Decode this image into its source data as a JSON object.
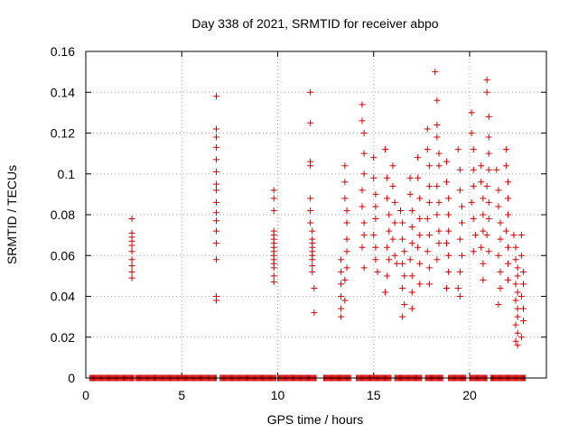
{
  "chart_data": {
    "type": "scatter",
    "title": "Day 338 of 2021, SRMTID for receiver abpo",
    "xlabel": "GPS time / hours",
    "ylabel": "SRMTID / TECUs",
    "xlim": [
      0,
      24
    ],
    "ylim": [
      0,
      0.16
    ],
    "xticks": [
      0,
      5,
      10,
      15,
      20
    ],
    "xtick_labels": [
      "0",
      "5",
      "10",
      "15",
      "20"
    ],
    "yticks": [
      0,
      0.02,
      0.04,
      0.06,
      0.08,
      0.1,
      0.12,
      0.14,
      0.16
    ],
    "ytick_labels": [
      "0",
      "0.02",
      "0.04",
      "0.06",
      "0.08",
      "0.1",
      "0.12",
      "0.14",
      "0.16"
    ],
    "grid": true,
    "marker": "+",
    "series": [
      {
        "name": "SRMTID",
        "color": "#d40000",
        "points": [
          [
            2.4,
            0.078
          ],
          [
            2.4,
            0.071
          ],
          [
            2.4,
            0.069
          ],
          [
            2.4,
            0.067
          ],
          [
            2.4,
            0.065
          ],
          [
            2.4,
            0.062
          ],
          [
            2.4,
            0.058
          ],
          [
            2.4,
            0.055
          ],
          [
            2.4,
            0.052
          ],
          [
            2.4,
            0.049
          ],
          [
            6.8,
            0.138
          ],
          [
            6.8,
            0.122
          ],
          [
            6.8,
            0.118
          ],
          [
            6.8,
            0.113
          ],
          [
            6.8,
            0.107
          ],
          [
            6.8,
            0.101
          ],
          [
            6.8,
            0.095
          ],
          [
            6.8,
            0.092
          ],
          [
            6.8,
            0.086
          ],
          [
            6.8,
            0.081
          ],
          [
            6.8,
            0.077
          ],
          [
            6.8,
            0.072
          ],
          [
            6.8,
            0.066
          ],
          [
            6.8,
            0.058
          ],
          [
            6.8,
            0.04
          ],
          [
            6.8,
            0.038
          ],
          [
            9.8,
            0.092
          ],
          [
            9.8,
            0.088
          ],
          [
            9.8,
            0.082
          ],
          [
            9.8,
            0.072
          ],
          [
            9.8,
            0.07
          ],
          [
            9.8,
            0.068
          ],
          [
            9.8,
            0.066
          ],
          [
            9.8,
            0.064
          ],
          [
            9.8,
            0.062
          ],
          [
            9.8,
            0.06
          ],
          [
            9.8,
            0.058
          ],
          [
            9.8,
            0.056
          ],
          [
            9.8,
            0.054
          ],
          [
            9.8,
            0.05
          ],
          [
            9.8,
            0.047
          ],
          [
            11.7,
            0.14
          ],
          [
            11.7,
            0.125
          ],
          [
            11.7,
            0.106
          ],
          [
            11.7,
            0.104
          ],
          [
            11.7,
            0.088
          ],
          [
            11.7,
            0.082
          ],
          [
            11.7,
            0.076
          ],
          [
            11.8,
            0.072
          ],
          [
            11.8,
            0.068
          ],
          [
            11.8,
            0.066
          ],
          [
            11.8,
            0.064
          ],
          [
            11.8,
            0.062
          ],
          [
            11.8,
            0.06
          ],
          [
            11.8,
            0.058
          ],
          [
            11.8,
            0.055
          ],
          [
            11.8,
            0.052
          ],
          [
            11.9,
            0.044
          ],
          [
            11.9,
            0.032
          ],
          [
            13.3,
            0.058
          ],
          [
            13.3,
            0.052
          ],
          [
            13.3,
            0.046
          ],
          [
            13.3,
            0.04
          ],
          [
            13.3,
            0.034
          ],
          [
            13.3,
            0.03
          ],
          [
            13.5,
            0.104
          ],
          [
            13.5,
            0.096
          ],
          [
            13.5,
            0.088
          ],
          [
            13.6,
            0.082
          ],
          [
            13.6,
            0.076
          ],
          [
            13.6,
            0.068
          ],
          [
            13.6,
            0.062
          ],
          [
            13.6,
            0.054
          ],
          [
            13.5,
            0.048
          ],
          [
            13.5,
            0.038
          ],
          [
            14.4,
            0.134
          ],
          [
            14.4,
            0.126
          ],
          [
            14.5,
            0.12
          ],
          [
            14.5,
            0.11
          ],
          [
            14.5,
            0.1
          ],
          [
            14.4,
            0.092
          ],
          [
            14.4,
            0.084
          ],
          [
            14.5,
            0.076
          ],
          [
            14.5,
            0.07
          ],
          [
            14.4,
            0.064
          ],
          [
            14.5,
            0.054
          ],
          [
            15.0,
            0.108
          ],
          [
            15.0,
            0.098
          ],
          [
            15.1,
            0.09
          ],
          [
            15.1,
            0.084
          ],
          [
            15.1,
            0.078
          ],
          [
            15.0,
            0.07
          ],
          [
            15.1,
            0.064
          ],
          [
            15.1,
            0.058
          ],
          [
            15.2,
            0.052
          ],
          [
            15.6,
            0.112
          ],
          [
            15.7,
            0.098
          ],
          [
            15.7,
            0.088
          ],
          [
            15.8,
            0.08
          ],
          [
            15.8,
            0.072
          ],
          [
            15.7,
            0.064
          ],
          [
            15.8,
            0.058
          ],
          [
            15.7,
            0.05
          ],
          [
            15.6,
            0.042
          ],
          [
            16.0,
            0.104
          ],
          [
            16.0,
            0.094
          ],
          [
            16.1,
            0.086
          ],
          [
            16.1,
            0.076
          ],
          [
            16.0,
            0.068
          ],
          [
            16.1,
            0.06
          ],
          [
            16.2,
            0.056
          ],
          [
            16.4,
            0.082
          ],
          [
            16.5,
            0.076
          ],
          [
            16.5,
            0.068
          ],
          [
            16.6,
            0.062
          ],
          [
            16.5,
            0.056
          ],
          [
            16.6,
            0.05
          ],
          [
            16.5,
            0.044
          ],
          [
            16.6,
            0.036
          ],
          [
            16.5,
            0.03
          ],
          [
            16.9,
            0.098
          ],
          [
            16.9,
            0.09
          ],
          [
            17.0,
            0.082
          ],
          [
            17.0,
            0.074
          ],
          [
            17.0,
            0.066
          ],
          [
            16.9,
            0.058
          ],
          [
            17.0,
            0.05
          ],
          [
            17.0,
            0.042
          ],
          [
            17.0,
            0.034
          ],
          [
            17.3,
            0.108
          ],
          [
            17.3,
            0.098
          ],
          [
            17.4,
            0.088
          ],
          [
            17.4,
            0.078
          ],
          [
            17.4,
            0.07
          ],
          [
            17.3,
            0.064
          ],
          [
            17.4,
            0.056
          ],
          [
            17.4,
            0.046
          ],
          [
            17.8,
            0.122
          ],
          [
            17.8,
            0.112
          ],
          [
            17.9,
            0.104
          ],
          [
            17.9,
            0.094
          ],
          [
            17.9,
            0.086
          ],
          [
            17.8,
            0.078
          ],
          [
            17.9,
            0.07
          ],
          [
            17.8,
            0.062
          ],
          [
            17.9,
            0.054
          ],
          [
            17.9,
            0.046
          ],
          [
            18.2,
            0.15
          ],
          [
            18.3,
            0.136
          ],
          [
            18.3,
            0.124
          ],
          [
            18.3,
            0.118
          ],
          [
            18.4,
            0.11
          ],
          [
            18.4,
            0.104
          ],
          [
            18.3,
            0.094
          ],
          [
            18.4,
            0.086
          ],
          [
            18.3,
            0.08
          ],
          [
            18.4,
            0.072
          ],
          [
            18.4,
            0.066
          ],
          [
            18.3,
            0.058
          ],
          [
            18.8,
            0.106
          ],
          [
            18.8,
            0.096
          ],
          [
            18.9,
            0.088
          ],
          [
            18.9,
            0.08
          ],
          [
            18.9,
            0.072
          ],
          [
            18.8,
            0.066
          ],
          [
            18.9,
            0.06
          ],
          [
            18.9,
            0.052
          ],
          [
            18.8,
            0.044
          ],
          [
            19.4,
            0.112
          ],
          [
            19.5,
            0.102
          ],
          [
            19.5,
            0.092
          ],
          [
            19.6,
            0.084
          ],
          [
            19.6,
            0.076
          ],
          [
            19.5,
            0.068
          ],
          [
            19.6,
            0.06
          ],
          [
            19.5,
            0.052
          ],
          [
            19.4,
            0.044
          ],
          [
            19.5,
            0.04
          ],
          [
            20.1,
            0.13
          ],
          [
            20.1,
            0.12
          ],
          [
            20.2,
            0.112
          ],
          [
            20.2,
            0.102
          ],
          [
            20.2,
            0.094
          ],
          [
            20.1,
            0.086
          ],
          [
            20.2,
            0.078
          ],
          [
            20.3,
            0.07
          ],
          [
            20.2,
            0.062
          ],
          [
            20.6,
            0.104
          ],
          [
            20.6,
            0.096
          ],
          [
            20.7,
            0.088
          ],
          [
            20.7,
            0.08
          ],
          [
            20.7,
            0.072
          ],
          [
            20.6,
            0.064
          ],
          [
            20.7,
            0.056
          ],
          [
            20.7,
            0.048
          ],
          [
            20.9,
            0.146
          ],
          [
            20.9,
            0.14
          ],
          [
            21.0,
            0.128
          ],
          [
            21.0,
            0.118
          ],
          [
            21.0,
            0.11
          ],
          [
            21.0,
            0.102
          ],
          [
            20.9,
            0.094
          ],
          [
            21.0,
            0.086
          ],
          [
            21.0,
            0.078
          ],
          [
            20.9,
            0.07
          ],
          [
            21.0,
            0.062
          ],
          [
            21.4,
            0.102
          ],
          [
            21.5,
            0.092
          ],
          [
            21.5,
            0.084
          ],
          [
            21.6,
            0.076
          ],
          [
            21.6,
            0.068
          ],
          [
            21.5,
            0.06
          ],
          [
            21.6,
            0.052
          ],
          [
            21.6,
            0.044
          ],
          [
            21.5,
            0.036
          ],
          [
            21.9,
            0.112
          ],
          [
            21.9,
            0.104
          ],
          [
            22.0,
            0.096
          ],
          [
            22.0,
            0.088
          ],
          [
            22.0,
            0.08
          ],
          [
            21.9,
            0.072
          ],
          [
            22.0,
            0.064
          ],
          [
            22.0,
            0.056
          ],
          [
            22.0,
            0.048
          ],
          [
            22.3,
            0.07
          ],
          [
            22.4,
            0.064
          ],
          [
            22.4,
            0.058
          ],
          [
            22.5,
            0.054
          ],
          [
            22.5,
            0.05
          ],
          [
            22.4,
            0.046
          ],
          [
            22.5,
            0.042
          ],
          [
            22.4,
            0.038
          ],
          [
            22.5,
            0.034
          ],
          [
            22.5,
            0.03
          ],
          [
            22.4,
            0.026
          ],
          [
            22.5,
            0.022
          ],
          [
            22.4,
            0.018
          ],
          [
            22.5,
            0.016
          ],
          [
            22.7,
            0.07
          ],
          [
            22.7,
            0.06
          ],
          [
            22.8,
            0.052
          ],
          [
            22.8,
            0.046
          ],
          [
            22.7,
            0.04
          ],
          [
            22.8,
            0.034
          ],
          [
            22.8,
            0.028
          ],
          [
            22.7,
            0.02
          ]
        ]
      }
    ],
    "zero_baseline_ranges": [
      [
        0.2,
        2.5
      ],
      [
        2.6,
        6.8
      ],
      [
        7.0,
        9.9
      ],
      [
        10.0,
        12.0
      ],
      [
        12.4,
        13.8
      ],
      [
        14.1,
        15.9
      ],
      [
        16.1,
        17.5
      ],
      [
        17.7,
        18.6
      ],
      [
        18.9,
        19.8
      ],
      [
        20.0,
        20.9
      ],
      [
        21.1,
        22.9
      ]
    ]
  }
}
